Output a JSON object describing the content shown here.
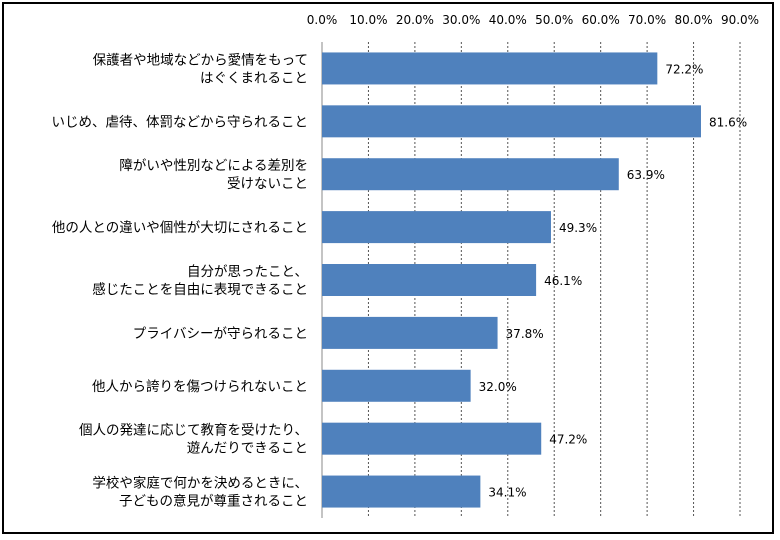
{
  "chart_data": {
    "type": "bar",
    "orientation": "horizontal",
    "title": "",
    "xlabel": "",
    "ylabel": "",
    "xlim": [
      0,
      90
    ],
    "ticks": [
      "0.0%",
      "10.0%",
      "20.0%",
      "30.0%",
      "40.0%",
      "50.0%",
      "60.0%",
      "70.0%",
      "80.0%",
      "90.0%"
    ],
    "grid": true,
    "legend": "none",
    "bar_color": "#4f81bd",
    "categories": [
      [
        "保護者や地域などから愛情をもって",
        "はぐくまれること"
      ],
      [
        "いじめ、虐待、体罰などから守られること"
      ],
      [
        "障がいや性別などによる差別を",
        "受けないこと"
      ],
      [
        "他の人との違いや個性が大切にされること"
      ],
      [
        "自分が思ったこと、",
        "感じたことを自由に表現できること"
      ],
      [
        "プライバシーが守られること"
      ],
      [
        "他人から誇りを傷つけられないこと"
      ],
      [
        "個人の発達に応じて教育を受けたり、",
        "遊んだりできること"
      ],
      [
        "学校や家庭で何かを決めるときに、",
        "子どもの意見が尊重されること"
      ]
    ],
    "values": [
      72.2,
      81.6,
      63.9,
      49.3,
      46.1,
      37.8,
      32.0,
      47.2,
      34.1
    ],
    "value_labels": [
      "72.2%",
      "81.6%",
      "63.9%",
      "49.3%",
      "46.1%",
      "37.8%",
      "32.0%",
      "47.2%",
      "34.1%"
    ]
  }
}
